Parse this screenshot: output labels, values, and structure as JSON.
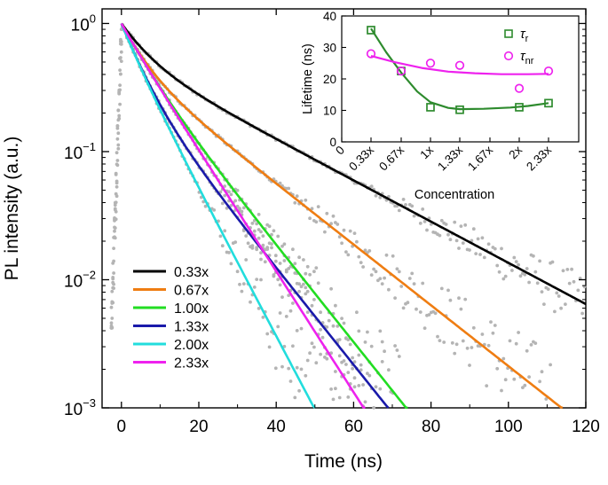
{
  "chart_data": [
    {
      "type": "line",
      "title": "",
      "xlabel": "Time (ns)",
      "ylabel": "PL intensity (a.u.)",
      "y_scale": "log",
      "xlim": [
        -5,
        120
      ],
      "ylim": [
        0.001,
        1.3
      ],
      "x_ticks": [
        "0",
        "20",
        "40",
        "60",
        "80",
        "100",
        "120"
      ],
      "y_ticks": [
        {
          "base": "10",
          "exp": "0"
        },
        {
          "base": "10",
          "exp": "−1"
        },
        {
          "base": "10",
          "exp": "−2"
        },
        {
          "base": "10",
          "exp": "−3"
        }
      ],
      "legend_position": "bottom-left",
      "raw_data_color": "#b4b4b4",
      "series": [
        {
          "name": "0.33x",
          "color": "#000000",
          "a1": 0.45,
          "tau1": 6,
          "tau2": 27
        },
        {
          "name": "0.67x",
          "color": "#ef7d12",
          "a1": 0.5,
          "tau1": 5,
          "tau2": 18.3
        },
        {
          "name": "1.00x",
          "color": "#22dd22",
          "a1": 0.4,
          "tau1": 5.5,
          "tau2": 11.5
        },
        {
          "name": "1.33x",
          "color": "#1a1aaa",
          "a1": 0.6,
          "tau1": 4.5,
          "tau2": 11.5
        },
        {
          "name": "2.00x",
          "color": "#22dddd",
          "a1": 0.3,
          "tau1": 4,
          "tau2": 7.6
        },
        {
          "name": "2.33x",
          "color": "#ee22ee",
          "a1": 0.1,
          "tau1": 4,
          "tau2": 9.2
        }
      ]
    },
    {
      "type": "scatter",
      "title": "",
      "xlabel": "Concentration",
      "ylabel": "Lifetime (ns)",
      "categories": [
        "0",
        "0.33x",
        "0.67x",
        "1x",
        "1.33x",
        "1.67x",
        "2x",
        "2.33x"
      ],
      "ylim": [
        0,
        40
      ],
      "y_ticks": [
        "0",
        "10",
        "20",
        "30",
        "40"
      ],
      "legend_position": "top-right",
      "series": [
        {
          "name": "τ",
          "sub": "r",
          "marker": "square",
          "color": "#2e8b2e",
          "x": [
            0.33,
            0.67,
            1.0,
            1.33,
            2.0,
            2.33
          ],
          "values": [
            35.5,
            22.5,
            11,
            10.2,
            11,
            12.3
          ],
          "fit_x": [
            0.33,
            0.5,
            0.67,
            0.85,
            1.0,
            1.2,
            1.33,
            1.6,
            1.9,
            2.1,
            2.33
          ],
          "fit_y": [
            36,
            28.5,
            22,
            16,
            12.6,
            10.8,
            10.4,
            10.5,
            10.9,
            11.4,
            12.3
          ]
        },
        {
          "name": "τ",
          "sub": "nr",
          "marker": "circle",
          "color": "#ee22ee",
          "x": [
            0.33,
            0.67,
            1.0,
            1.33,
            2.0,
            2.33
          ],
          "values": [
            28,
            22.5,
            25,
            24.3,
            17,
            22.5
          ],
          "fit_x": [
            0.33,
            0.6,
            0.9,
            1.2,
            1.5,
            1.8,
            2.1,
            2.33
          ],
          "fit_y": [
            27.3,
            25.3,
            23.5,
            22.3,
            21.8,
            21.5,
            21.5,
            21.6
          ]
        }
      ]
    }
  ]
}
